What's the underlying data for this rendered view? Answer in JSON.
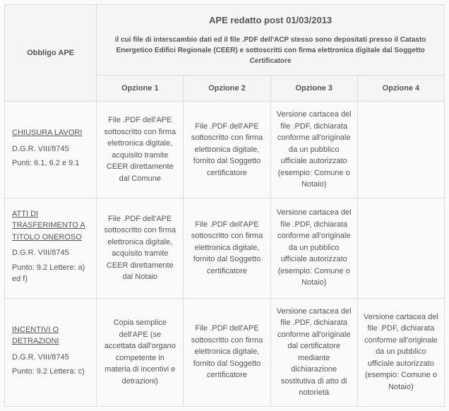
{
  "header": {
    "obbligo": "Obbligo APE",
    "title": "APE redatto post 01/03/2013",
    "subtitle": "il cui file di interscambio dati ed il file .PDF dell'ACP stesso sono depositati presso il Catasto Energetico Edifici Regionale (CEER) e sottoscritti con firma elettronica digitale dal Soggetto Certificatore",
    "options": [
      "Opzione 1",
      "Opzione 2",
      "Opzione 3",
      "Opzione 4"
    ]
  },
  "rows": [
    {
      "title": "CHIUSURA LAVORI",
      "sub1": "D.G.R. VIII/8745",
      "sub2": "Punti: 6.1, 6.2 e 9.1",
      "opts": [
        "File .PDF dell'APE sottoscritto con firma elettronica digitale, acquisito tramite CEER direttamente dal Comune",
        "File .PDF dell'APE sottoscritto con firma elettronica digitale, fornito dal Soggetto certificatore",
        "Versione cartacea del file .PDF, dichiarata conforme all'originale da un pubblico ufficiale autorizzato (esempio: Comune o Notaio)",
        ""
      ]
    },
    {
      "title": "ATTI DI TRASFERIMENTO A TITOLO ONEROSO",
      "sub1": "D.G.R. VIII/8745",
      "sub2": "Punto: 9.2 Lettere: a) ed f)",
      "opts": [
        "File .PDF dell'APE sottoscritto con firma elettronica digitale, acquisito tramite CEER direttamente dal Notaio",
        "File .PDF dell'APE sottoscritto con firma elettronica digitale, fornito dal Soggetto certificatore",
        "Versione cartacea del file .PDF, dichiarata conforme all'originale da un pubblico ufficiale autorizzato (esempio: Comune o Notaio)",
        ""
      ]
    },
    {
      "title": "INCENTIVI O DETRAZIONI",
      "sub1": "D.G.R. VIII/8745",
      "sub2": "Punto: 9.2 Lettera: c)",
      "opts": [
        "Copia semplice dell'APE (se accettata dall'organo competente in materia di incentivi e detrazioni)",
        "File .PDF dell'APE sottoscritto con firma elettronica digitale, fornito dal Soggetto certificatore",
        "Versione cartacea del file .PDF, dichiarata conforme all'originale dal certificatore mediante dichiarazione sostitutiva di atto di notorietà",
        "Versione cartacea del file .PDF, dichiarata conforme all'originale da un pubblico ufficiale autorizzato (esempio: Comune o Notaio)"
      ]
    }
  ]
}
